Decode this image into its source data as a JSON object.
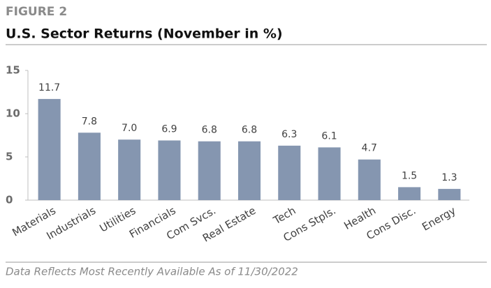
{
  "chart_data": {
    "type": "bar",
    "figure_label": "FIGURE 2",
    "title": "U.S. Sector Returns (November in %)",
    "note": "Data Reflects Most Recently Available As of 11/30/2022",
    "categories": [
      "Materials",
      "Industrials",
      "Utilities",
      "Financials",
      "Com Svcs.",
      "Real Estate",
      "Tech",
      "Cons Stpls.",
      "Health",
      "Cons Disc.",
      "Energy"
    ],
    "values": [
      11.7,
      7.8,
      7.0,
      6.9,
      6.8,
      6.8,
      6.3,
      6.1,
      4.7,
      1.5,
      1.3
    ],
    "value_labels": [
      "11.7",
      "7.8",
      "7.0",
      "6.9",
      "6.8",
      "6.8",
      "6.3",
      "6.1",
      "4.7",
      "1.5",
      "1.3"
    ],
    "color": "#8596b0",
    "ylim": [
      0,
      15
    ],
    "yticks": [
      0,
      5,
      10,
      15
    ],
    "grid": false
  }
}
